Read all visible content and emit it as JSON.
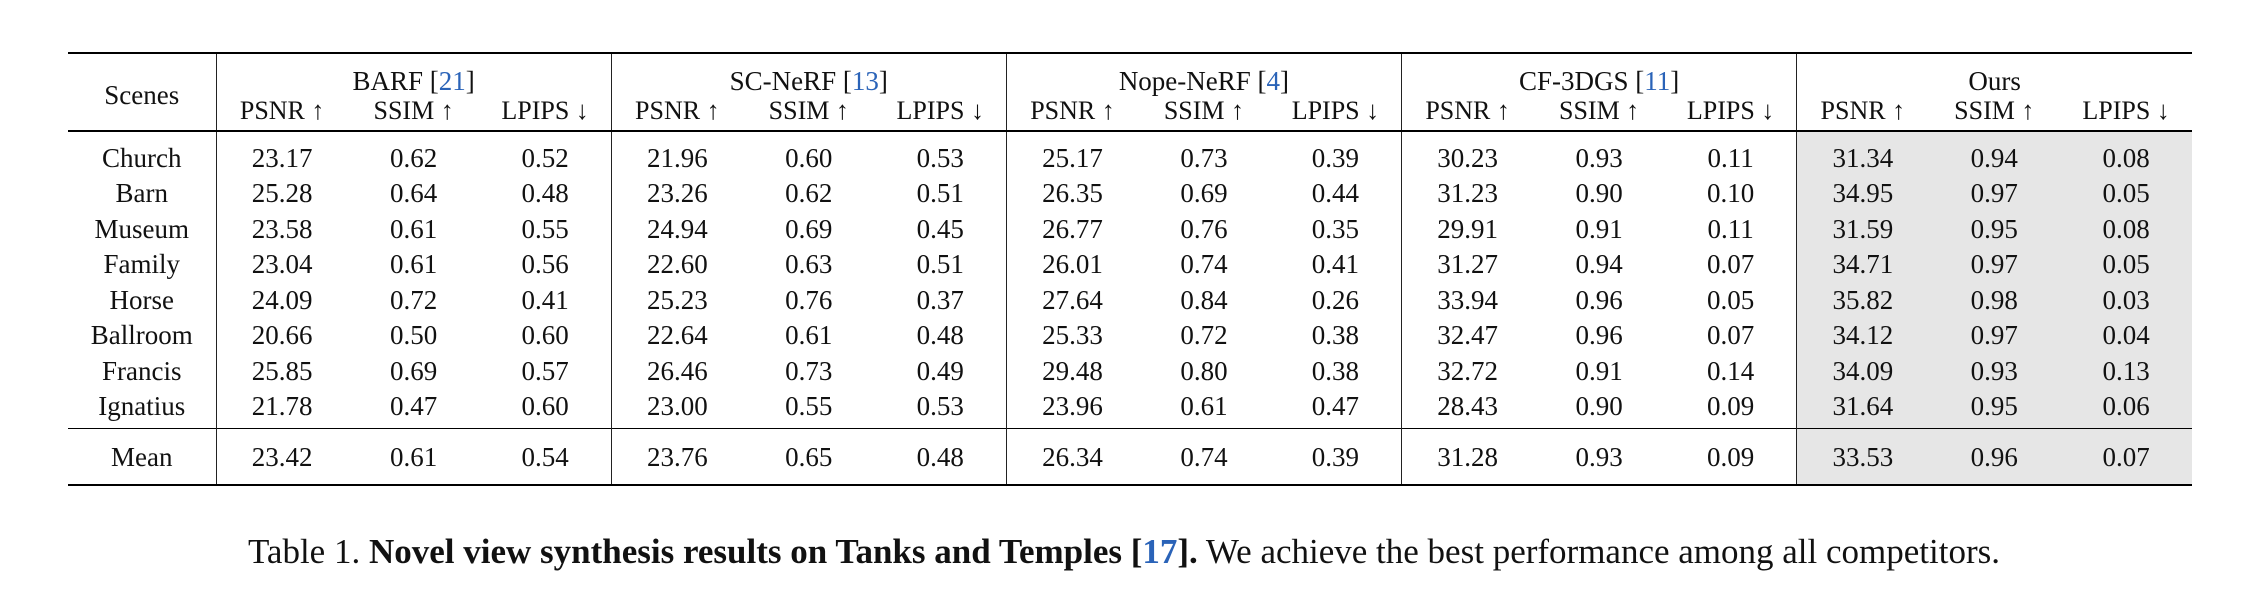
{
  "table": {
    "scenes_label": "Scenes",
    "groups": [
      {
        "name": "BARF",
        "cite": "21"
      },
      {
        "name": "SC-NeRF",
        "cite": "13"
      },
      {
        "name": "Nope-NeRF",
        "cite": "4"
      },
      {
        "name": "CF-3DGS",
        "cite": "11"
      },
      {
        "name": "Ours",
        "cite": ""
      }
    ],
    "metrics": [
      "PSNR ↑",
      "SSIM ↑",
      "LPIPS ↓"
    ],
    "rows": [
      {
        "scene": "Church",
        "values": [
          "23.17",
          "0.62",
          "0.52",
          "21.96",
          "0.60",
          "0.53",
          "25.17",
          "0.73",
          "0.39",
          "30.23",
          "0.93",
          "0.11",
          "31.34",
          "0.94",
          "0.08"
        ]
      },
      {
        "scene": "Barn",
        "values": [
          "25.28",
          "0.64",
          "0.48",
          "23.26",
          "0.62",
          "0.51",
          "26.35",
          "0.69",
          "0.44",
          "31.23",
          "0.90",
          "0.10",
          "34.95",
          "0.97",
          "0.05"
        ]
      },
      {
        "scene": "Museum",
        "values": [
          "23.58",
          "0.61",
          "0.55",
          "24.94",
          "0.69",
          "0.45",
          "26.77",
          "0.76",
          "0.35",
          "29.91",
          "0.91",
          "0.11",
          "31.59",
          "0.95",
          "0.08"
        ]
      },
      {
        "scene": "Family",
        "values": [
          "23.04",
          "0.61",
          "0.56",
          "22.60",
          "0.63",
          "0.51",
          "26.01",
          "0.74",
          "0.41",
          "31.27",
          "0.94",
          "0.07",
          "34.71",
          "0.97",
          "0.05"
        ]
      },
      {
        "scene": "Horse",
        "values": [
          "24.09",
          "0.72",
          "0.41",
          "25.23",
          "0.76",
          "0.37",
          "27.64",
          "0.84",
          "0.26",
          "33.94",
          "0.96",
          "0.05",
          "35.82",
          "0.98",
          "0.03"
        ]
      },
      {
        "scene": "Ballroom",
        "values": [
          "20.66",
          "0.50",
          "0.60",
          "22.64",
          "0.61",
          "0.48",
          "25.33",
          "0.72",
          "0.38",
          "32.47",
          "0.96",
          "0.07",
          "34.12",
          "0.97",
          "0.04"
        ]
      },
      {
        "scene": "Francis",
        "values": [
          "25.85",
          "0.69",
          "0.57",
          "26.46",
          "0.73",
          "0.49",
          "29.48",
          "0.80",
          "0.38",
          "32.72",
          "0.91",
          "0.14",
          "34.09",
          "0.93",
          "0.13"
        ]
      },
      {
        "scene": "Ignatius",
        "values": [
          "21.78",
          "0.47",
          "0.60",
          "23.00",
          "0.55",
          "0.53",
          "23.96",
          "0.61",
          "0.47",
          "28.43",
          "0.90",
          "0.09",
          "31.64",
          "0.95",
          "0.06"
        ]
      }
    ],
    "mean": {
      "scene": "Mean",
      "values": [
        "23.42",
        "0.61",
        "0.54",
        "23.76",
        "0.65",
        "0.48",
        "26.34",
        "0.74",
        "0.39",
        "31.28",
        "0.93",
        "0.09",
        "33.53",
        "0.96",
        "0.07"
      ]
    }
  },
  "caption": {
    "label": "Table 1.",
    "bold_text": "Novel view synthesis results on Tanks and Temples [",
    "cite": "17",
    "bold_close": "].",
    "rest": "We achieve the best performance among all competitors."
  },
  "colors": {
    "citation": "#2a63b8",
    "highlight": "#e6e6e6"
  }
}
